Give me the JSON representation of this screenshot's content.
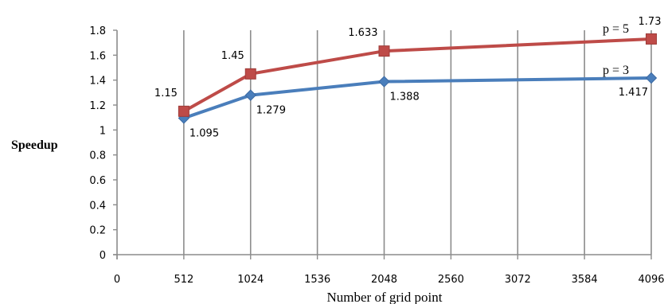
{
  "chart_data": {
    "type": "line",
    "xlabel": "Number of grid point",
    "ylabel": "Speedup",
    "x_ticks": [
      "0",
      "512",
      "1024",
      "1536",
      "2048",
      "2560",
      "3072",
      "3584",
      "4096"
    ],
    "y_ticks": [
      "0",
      "0.2",
      "0.4",
      "0.6",
      "0.8",
      "1",
      "1.2",
      "1.4",
      "1.6",
      "1.8"
    ],
    "xlim": [
      0,
      4096
    ],
    "ylim": [
      0,
      1.8
    ],
    "grid": "vertical",
    "series": [
      {
        "name": "p = 3",
        "marker": "diamond",
        "color": "#4a7ebb",
        "points": [
          {
            "x": 512,
            "y": 1.095,
            "label": "1.095"
          },
          {
            "x": 1024,
            "y": 1.279,
            "label": "1.279"
          },
          {
            "x": 2048,
            "y": 1.388,
            "label": "1.388"
          },
          {
            "x": 4096,
            "y": 1.417,
            "label": "1.417"
          }
        ]
      },
      {
        "name": "p = 5",
        "marker": "square",
        "color": "#be4b48",
        "points": [
          {
            "x": 512,
            "y": 1.15,
            "label": "1.15"
          },
          {
            "x": 1024,
            "y": 1.45,
            "label": "1.45"
          },
          {
            "x": 2048,
            "y": 1.633,
            "label": "1.633"
          },
          {
            "x": 4096,
            "y": 1.73,
            "label": "1.73"
          }
        ]
      }
    ]
  }
}
